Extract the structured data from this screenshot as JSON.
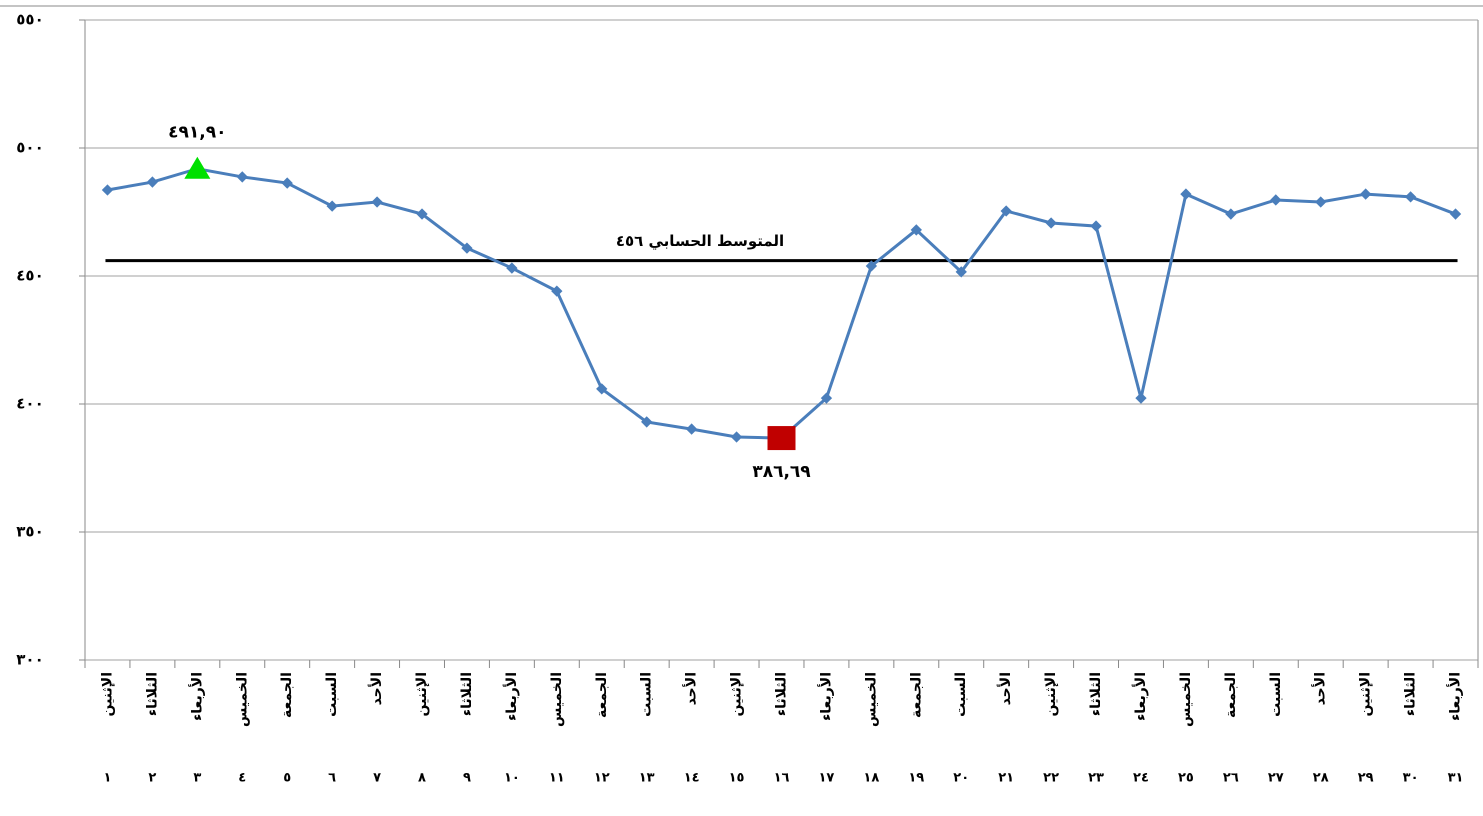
{
  "chart_data": {
    "type": "line",
    "categories": [
      "الإثنين",
      "الثلاثاء",
      "الأربعاء",
      "الخميس",
      "الجمعة",
      "السبت",
      "الأحد",
      "الإثنين",
      "الثلاثاء",
      "الأربعاء",
      "الخميس",
      "الجمعة",
      "السبت",
      "الأحد",
      "الإثنين",
      "الثلاثاء",
      "الأربعاء",
      "الخميس",
      "الجمعة",
      "السبت",
      "الأحد",
      "الإثنين",
      "الثلاثاء",
      "الأربعاء",
      "الخميس",
      "الجمعة",
      "السبت",
      "الأحد",
      "الإثنين",
      "الثلاثاء",
      "الأربعاء"
    ],
    "days": [
      "١",
      "٢",
      "٣",
      "٤",
      "٥",
      "٦",
      "٧",
      "٨",
      "٩",
      "١٠",
      "١١",
      "١٢",
      "١٣",
      "١٤",
      "١٥",
      "١٦",
      "١٧",
      "١٨",
      "١٩",
      "٢٠",
      "٢١",
      "٢٢",
      "٢٣",
      "٢٤",
      "٢٥",
      "٢٦",
      "٢٧",
      "٢٨",
      "٢٩",
      "٣٠",
      "٣١"
    ],
    "series": [
      {
        "color": "#4a7ebb",
        "values": [
          483.6,
          486.7,
          491.9,
          488.7,
          486.3,
          477.3,
          478.9,
          474.2,
          460.9,
          453.1,
          444.1,
          405.9,
          393.0,
          390.2,
          387.1,
          386.69,
          402.3,
          453.9,
          468.0,
          451.6,
          475.4,
          470.7,
          469.5,
          402.3,
          482.0,
          474.2,
          479.7,
          478.9,
          482.0,
          480.9,
          474.2
        ],
        "value_labels": [
          null,
          null,
          "٤٩١,٩٠",
          null,
          null,
          null,
          null,
          null,
          null,
          null,
          null,
          null,
          null,
          null,
          null,
          "٣٨٦,٦٩",
          null,
          null,
          null,
          null,
          null,
          null,
          null,
          null,
          null,
          null,
          null,
          null,
          null,
          null,
          null
        ]
      }
    ],
    "max_marker_color": "#00e000",
    "min_marker_color": "#c00000",
    "average": {
      "value": 456,
      "label": "المتوسط الحسابي  ٤٥٦",
      "color": "#000000"
    },
    "ylim": [
      300,
      550
    ],
    "yticks": [
      {
        "value": 300,
        "label": "٣٠٠"
      },
      {
        "value": 350,
        "label": "٣٥٠"
      },
      {
        "value": 400,
        "label": "٤٠٠"
      },
      {
        "value": 450,
        "label": "٤٥٠"
      },
      {
        "value": 500,
        "label": "٥٠٠"
      },
      {
        "value": 550,
        "label": "٥٥٠"
      }
    ],
    "grid": true
  }
}
